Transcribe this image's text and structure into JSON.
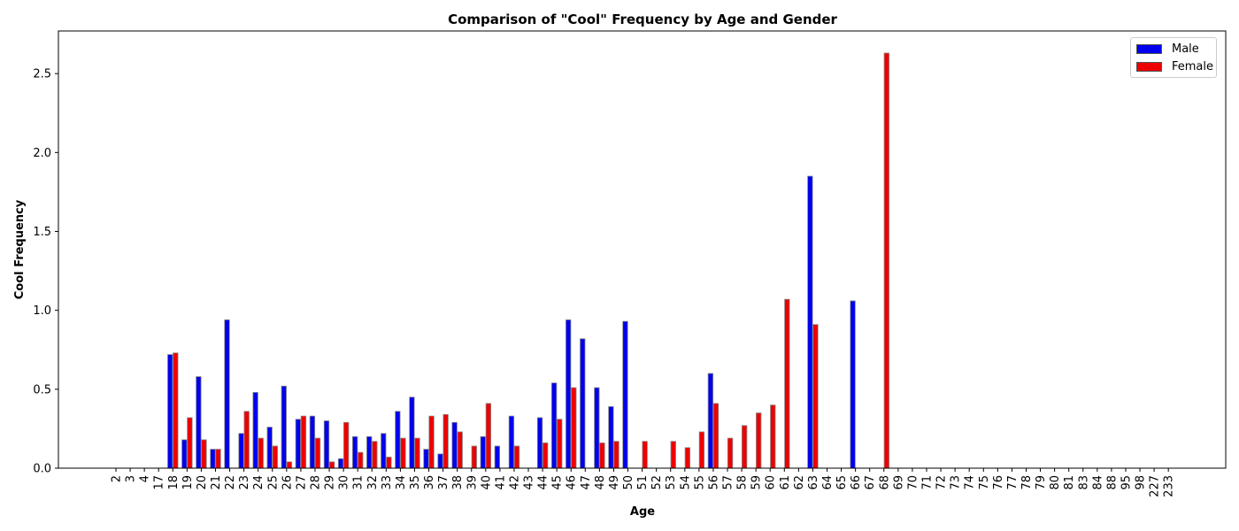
{
  "chart_data": {
    "type": "bar",
    "title": "Comparison of \"Cool\" Frequency by Age and Gender",
    "xlabel": "Age",
    "ylabel": "Cool Frequency",
    "ylim": [
      0,
      2.77
    ],
    "yticks": [
      "0.0",
      "0.5",
      "1.0",
      "1.5",
      "2.0",
      "2.5"
    ],
    "legend_position": "top-right",
    "categories": [
      "2",
      "3",
      "4",
      "17",
      "18",
      "19",
      "20",
      "21",
      "22",
      "23",
      "24",
      "25",
      "26",
      "27",
      "28",
      "29",
      "30",
      "31",
      "32",
      "33",
      "34",
      "35",
      "36",
      "37",
      "38",
      "39",
      "40",
      "41",
      "42",
      "43",
      "44",
      "45",
      "46",
      "47",
      "48",
      "49",
      "50",
      "51",
      "52",
      "53",
      "54",
      "55",
      "56",
      "57",
      "58",
      "59",
      "60",
      "61",
      "62",
      "63",
      "64",
      "65",
      "66",
      "67",
      "68",
      "69",
      "70",
      "71",
      "72",
      "73",
      "74",
      "75",
      "76",
      "77",
      "78",
      "79",
      "80",
      "81",
      "83",
      "84",
      "88",
      "95",
      "98",
      "227",
      "233"
    ],
    "series": [
      {
        "name": "Male",
        "color": "#0000ee",
        "values": [
          0,
          0,
          0,
          0,
          0.72,
          0.18,
          0.58,
          0.12,
          0.94,
          0.22,
          0.48,
          0.26,
          0.52,
          0.31,
          0.33,
          0.3,
          0.06,
          0.2,
          0.2,
          0.22,
          0.36,
          0.45,
          0.12,
          0.09,
          0.29,
          0,
          0.2,
          0.14,
          0.33,
          0,
          0.32,
          0.54,
          0.94,
          0.82,
          0.51,
          0.39,
          0.93,
          0,
          0,
          0,
          0,
          0,
          0.6,
          0,
          0,
          0,
          0,
          0,
          0,
          1.85,
          0,
          0,
          1.06,
          0,
          0,
          0,
          0,
          0,
          0,
          0,
          0,
          0,
          0,
          0,
          0,
          0,
          0,
          0,
          0,
          0,
          0,
          0,
          0,
          0,
          0
        ]
      },
      {
        "name": "Female",
        "color": "#ee0000",
        "values": [
          0,
          0,
          0,
          0,
          0.73,
          0.32,
          0.18,
          0.12,
          0,
          0.36,
          0.19,
          0.14,
          0.04,
          0.33,
          0.19,
          0.04,
          0.29,
          0.1,
          0.17,
          0.07,
          0.19,
          0.19,
          0.33,
          0.34,
          0.23,
          0.14,
          0.41,
          0,
          0.14,
          0,
          0.16,
          0.31,
          0.51,
          0,
          0.16,
          0.17,
          0,
          0.17,
          0,
          0.17,
          0.13,
          0.23,
          0.41,
          0.19,
          0.27,
          0.35,
          0.4,
          1.07,
          0,
          0.91,
          0,
          0,
          0,
          0,
          2.63,
          0,
          0,
          0,
          0,
          0,
          0,
          0,
          0,
          0,
          0,
          0,
          0,
          0,
          0,
          0,
          0,
          0,
          0,
          0,
          0
        ]
      }
    ]
  }
}
